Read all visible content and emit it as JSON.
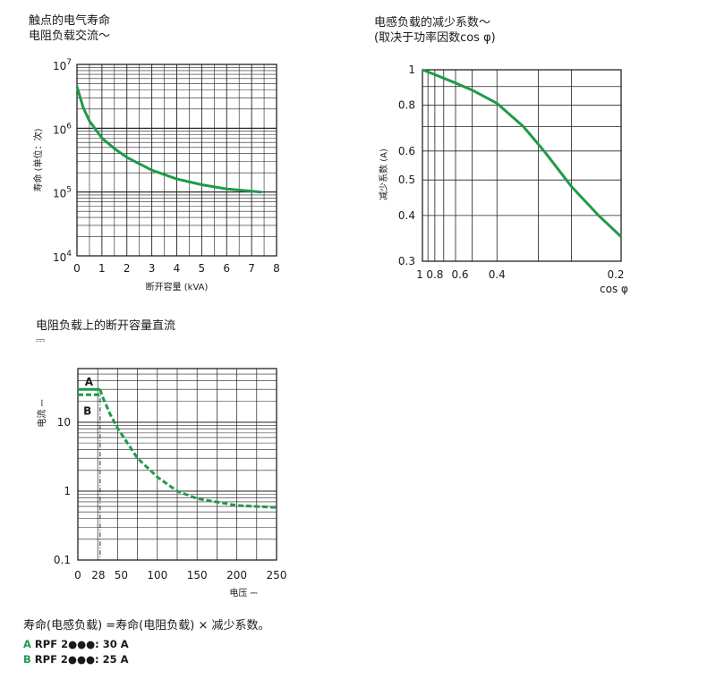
{
  "chart_data": [
    {
      "type": "line",
      "title": "触点的电气寿命",
      "subtitle": "电阻负载交流～",
      "xlabel": "断开容量 (kVA)",
      "ylabel": "寿命 (单位：次)",
      "xlim": [
        0,
        8
      ],
      "ylim": [
        10000,
        10000000
      ],
      "yscale": "log",
      "grid": true,
      "x_ticks": [
        "0",
        "1",
        "2",
        "3",
        "4",
        "5",
        "6",
        "7",
        "8"
      ],
      "y_ticks": [
        {
          "base": "10",
          "exp": "4",
          "value": 10000
        },
        {
          "base": "10",
          "exp": "5",
          "value": 100000
        },
        {
          "base": "10",
          "exp": "6",
          "value": 1000000
        },
        {
          "base": "10",
          "exp": "7",
          "value": 10000000
        }
      ],
      "color": "#1f9a4a",
      "series": [
        {
          "x": [
            0,
            0.25,
            0.5,
            1,
            1.5,
            2,
            3,
            4,
            5,
            6,
            7,
            7.4
          ],
          "y": [
            4500000,
            2100000,
            1300000,
            700000,
            480000,
            350000,
            220000,
            160000,
            130000,
            112000,
            103000,
            100000
          ]
        }
      ]
    },
    {
      "type": "line",
      "title": "电感负载的减少系数～",
      "subtitle": "(取决于功率因数cos φ)",
      "xlabel": "cos φ",
      "ylabel": "减少系数 (A)",
      "xscale": "reciprocal",
      "yscale": "log",
      "xlim": [
        1,
        0.2
      ],
      "ylim": [
        0.3,
        1
      ],
      "grid": true,
      "x_ticks": [
        "1",
        "0.8",
        "0.6",
        "0.4",
        "0.2"
      ],
      "y_ticks": [
        "1",
        "0.8",
        "0.6",
        "0.5",
        "0.4",
        "0.3"
      ],
      "color": "#1f9a4a",
      "series": [
        {
          "x": [
            1,
            0.8,
            0.6,
            0.5,
            0.4,
            0.33,
            0.29,
            0.25,
            0.22,
            0.2
          ],
          "y": [
            1,
            0.97,
            0.92,
            0.88,
            0.81,
            0.7,
            0.6,
            0.48,
            0.4,
            0.35
          ]
        }
      ]
    },
    {
      "type": "line",
      "title": "电阻负载上的断开容量直流",
      "subtitle": "⎓",
      "xlabel": "电压 ⎓",
      "ylabel": "电流 ⎓",
      "yscale": "log",
      "xlim": [
        0,
        250
      ],
      "ylim": [
        0.1,
        60
      ],
      "grid": true,
      "x_ticks": [
        "0",
        "28",
        "50",
        "100",
        "150",
        "200",
        "250"
      ],
      "x_tick_values": [
        0,
        28,
        50,
        100,
        150,
        200,
        250
      ],
      "y_ticks": [
        "0.1",
        "1",
        "10"
      ],
      "marker_x": 28,
      "color": "#1f9a4a",
      "series": [
        {
          "name": "A",
          "x": [
            0,
            28,
            30,
            35,
            40,
            50,
            75,
            100,
            125,
            150,
            200,
            250
          ],
          "y": [
            30,
            30,
            25,
            18.5,
            13.5,
            8.2,
            3.0,
            1.6,
            1.0,
            0.78,
            0.62,
            0.58
          ],
          "style": "solid-then-dashed"
        },
        {
          "name": "B",
          "x": [
            0,
            28
          ],
          "y": [
            25,
            25
          ],
          "style": "dashed"
        }
      ]
    }
  ],
  "footer": {
    "note": "寿命(电感负载) =寿命(电阻负载) × 减少系数。",
    "legend": [
      {
        "key": "A",
        "text": "RPF 2●●●: 30 A"
      },
      {
        "key": "B",
        "text": "RPF 2●●●: 25 A"
      }
    ]
  }
}
